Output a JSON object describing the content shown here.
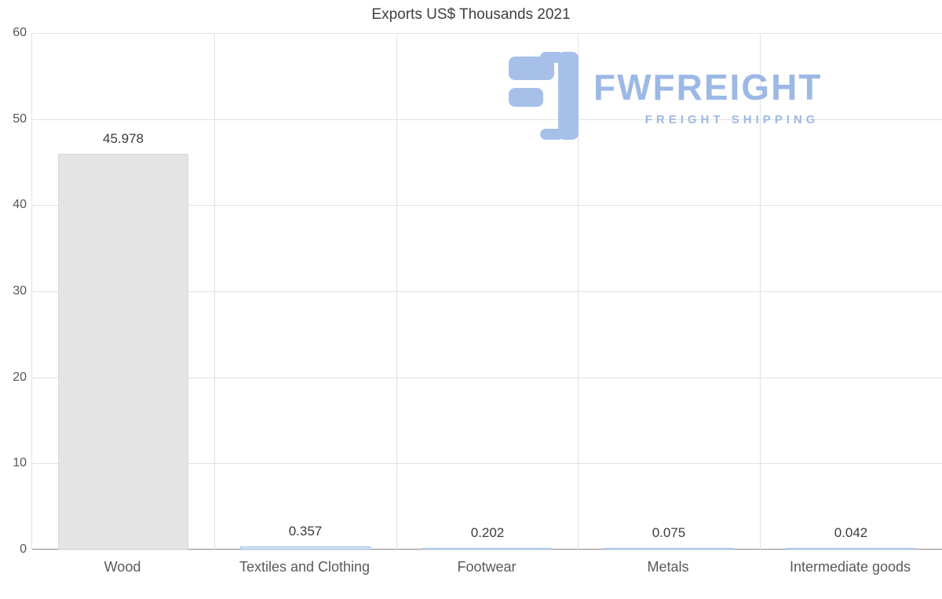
{
  "chart_data": {
    "type": "bar",
    "title": "Exports US$ Thousands 2021",
    "categories": [
      "Wood",
      "Textiles and Clothing",
      "Footwear",
      "Metals",
      "Intermediate goods"
    ],
    "values": [
      45.978,
      0.357,
      0.202,
      0.075,
      0.042
    ],
    "value_labels": [
      "45.978",
      "0.357",
      "0.202",
      "0.075",
      "0.042"
    ],
    "xlabel": "",
    "ylabel": "",
    "ylim": [
      0,
      60
    ],
    "yticks": [
      0,
      10,
      20,
      30,
      40,
      50,
      60
    ],
    "grid": true,
    "legend": false,
    "bar_fill_colors": [
      "#e4e4e4",
      "#d5e4f6",
      "#d5e4f6",
      "#d5e4f6",
      "#d5e4f6"
    ],
    "bar_border_colors": [
      "#d8d8d8",
      "#a9c6e8",
      "#a9c6e8",
      "#a9c6e8",
      "#a9c6e8"
    ]
  },
  "logo": {
    "name": "FWFREIGHT",
    "tagline": "FREIGHT SHIPPING",
    "brand_color": "#9cb8e6"
  }
}
